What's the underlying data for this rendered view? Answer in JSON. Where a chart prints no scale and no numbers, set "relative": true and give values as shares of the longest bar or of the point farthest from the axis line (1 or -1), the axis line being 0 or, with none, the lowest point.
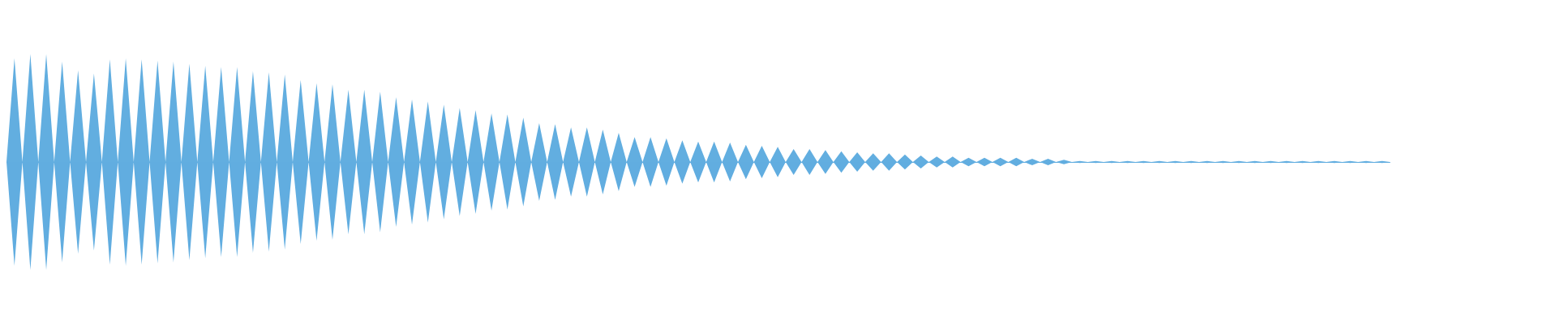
{
  "chart_data": {
    "type": "area",
    "relative": true,
    "categories": [
      null,
      null,
      null,
      null,
      null,
      null,
      null,
      null,
      null,
      null,
      null,
      null,
      null,
      null,
      null,
      null,
      null,
      null,
      null,
      null,
      null,
      null,
      null,
      null,
      null,
      null,
      null,
      null,
      null,
      null,
      null,
      null,
      null,
      null,
      null,
      null,
      null,
      null,
      null,
      null,
      null,
      null,
      null,
      null,
      null,
      null,
      null,
      null,
      null,
      null,
      null,
      null,
      null,
      null,
      null,
      null,
      null,
      null,
      null,
      null,
      null,
      null,
      null,
      null,
      null,
      null,
      null,
      null,
      null,
      null,
      null,
      null,
      null,
      null,
      null,
      null,
      null,
      null,
      null,
      null,
      null,
      null,
      null,
      null,
      null,
      null,
      null,
      null,
      null,
      null,
      null,
      null,
      null,
      null,
      null,
      null,
      null,
      null,
      null,
      null,
      null,
      null,
      null,
      null,
      null,
      null,
      null,
      null,
      null,
      null,
      null,
      null,
      null,
      null,
      null,
      null,
      null,
      null,
      null,
      null,
      null,
      null,
      null,
      null,
      null,
      null,
      null,
      null,
      null,
      null,
      null,
      null,
      null,
      null,
      null,
      null,
      null,
      null,
      null,
      null,
      null,
      null,
      null,
      null,
      null,
      null,
      null,
      null,
      null,
      null,
      null,
      null,
      null,
      null,
      null,
      null,
      null,
      null,
      null,
      null,
      null,
      null,
      null,
      null,
      null,
      null,
      null,
      null,
      null,
      null,
      null,
      null,
      null,
      null,
      null
    ],
    "series": [
      {
        "color": "#62aee0",
        "values": [
          0,
          0.96,
          0,
          1,
          0,
          1,
          0,
          0.93,
          0,
          0.85,
          0,
          0.82,
          0,
          0.95,
          0,
          0.96,
          0,
          0.95,
          0,
          0.94,
          0,
          0.93,
          0,
          0.91,
          0,
          0.89,
          0,
          0.88,
          0,
          0.88,
          0,
          0.84,
          0,
          0.83,
          0,
          0.81,
          0,
          0.76,
          0,
          0.73,
          0,
          0.72,
          0,
          0.67,
          0,
          0.67,
          0,
          0.65,
          0,
          0.6,
          0,
          0.58,
          0,
          0.56,
          0,
          0.53,
          0,
          0.5,
          0,
          0.48,
          0,
          0.45,
          0,
          0.44,
          0,
          0.41,
          0,
          0.36,
          0,
          0.35,
          0,
          0.32,
          0,
          0.32,
          0,
          0.3,
          0,
          0.27,
          0,
          0.23,
          0,
          0.23,
          0,
          0.22,
          0,
          0.2,
          0,
          0.19,
          0,
          0.19,
          0,
          0.18,
          0,
          0.16,
          0,
          0.15,
          0,
          0.14,
          0,
          0.12,
          0,
          0.12,
          0,
          0.11,
          0,
          0.1,
          0,
          0.09,
          0,
          0.08,
          0,
          0.08,
          0,
          0.07,
          0,
          0.06,
          0,
          0.05,
          0,
          0.05,
          0,
          0.04,
          0,
          0.04,
          0,
          0.04,
          0,
          0.04,
          0,
          0.03,
          0,
          0.03,
          0,
          0.02,
          0,
          0.01,
          0,
          0.01,
          0,
          0.01,
          0,
          0.01,
          0,
          0.01,
          0,
          0.01,
          0,
          0.01,
          0,
          0.01,
          0,
          0.01,
          0,
          0.01,
          0,
          0.01,
          0,
          0.01,
          0,
          0.01,
          0,
          0.01,
          0,
          0.01,
          0,
          0.01,
          0,
          0.01,
          0,
          0.01,
          0,
          0.01,
          0,
          0.01,
          0
        ]
      },
      {
        "color": "#61ade0",
        "values": [
          0,
          -0.96,
          0,
          -1,
          0,
          -1,
          0,
          -0.93,
          0,
          -0.85,
          0,
          -0.82,
          0,
          -0.95,
          0,
          -0.96,
          0,
          -0.95,
          0,
          -0.94,
          0,
          -0.93,
          0,
          -0.91,
          0,
          -0.89,
          0,
          -0.88,
          0,
          -0.88,
          0,
          -0.84,
          0,
          -0.83,
          0,
          -0.81,
          0,
          -0.76,
          0,
          -0.73,
          0,
          -0.72,
          0,
          -0.67,
          0,
          -0.67,
          0,
          -0.65,
          0,
          -0.6,
          0,
          -0.58,
          0,
          -0.56,
          0,
          -0.53,
          0,
          -0.5,
          0,
          -0.48,
          0,
          -0.45,
          0,
          -0.44,
          0,
          -0.41,
          0,
          -0.36,
          0,
          -0.35,
          0,
          -0.32,
          0,
          -0.32,
          0,
          -0.3,
          0,
          -0.27,
          0,
          -0.23,
          0,
          -0.23,
          0,
          -0.22,
          0,
          -0.2,
          0,
          -0.19,
          0,
          -0.19,
          0,
          -0.18,
          0,
          -0.16,
          0,
          -0.15,
          0,
          -0.14,
          0,
          -0.12,
          0,
          -0.12,
          0,
          -0.11,
          0,
          -0.1,
          0,
          -0.09,
          0,
          -0.08,
          0,
          -0.08,
          0,
          -0.07,
          0,
          -0.06,
          0,
          -0.05,
          0,
          -0.05,
          0,
          -0.04,
          0,
          -0.04,
          0,
          -0.04,
          0,
          -0.04,
          0,
          -0.03,
          0,
          -0.03,
          0,
          -0.02,
          0,
          -0.01,
          0,
          -0.01,
          0,
          -0.01,
          0,
          -0.01,
          0,
          -0.01,
          0,
          -0.01,
          0,
          -0.01,
          0,
          -0.01,
          0,
          -0.01,
          0,
          -0.01,
          0,
          -0.01,
          0,
          -0.01,
          0,
          -0.01,
          0,
          -0.01,
          0,
          -0.01,
          0,
          -0.01,
          0,
          -0.01,
          0,
          -0.01,
          0,
          -0.01,
          0,
          -0.01,
          0
        ]
      }
    ]
  }
}
